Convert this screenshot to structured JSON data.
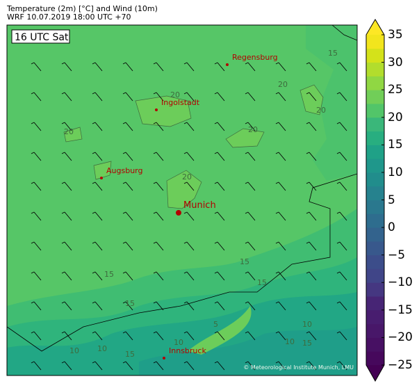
{
  "header": {
    "title": "Temperature (2m) [°C] and Wind (10m)",
    "subtitle": "WRF 10.07.2019 18:00 UTC +70"
  },
  "map": {
    "time_label": "16 UTC Sat",
    "cities": [
      {
        "name": "Regensburg",
        "major": false
      },
      {
        "name": "Ingolstadt",
        "major": false
      },
      {
        "name": "Augsburg",
        "major": false
      },
      {
        "name": "Munich",
        "major": true
      },
      {
        "name": "Innsbruck",
        "major": false
      }
    ],
    "contour_labels": [
      "15",
      "20",
      "20",
      "20",
      "20",
      "20",
      "20",
      "15",
      "15",
      "15",
      "15",
      "10",
      "10",
      "10",
      "15",
      "10",
      "5",
      "15",
      "10"
    ],
    "wind_direction": "northwest",
    "copyright": "© Meteorological Institute Munich, LMU",
    "city_color": "#b30000"
  },
  "colorbar": {
    "colormap": "viridis",
    "min": -25,
    "max": 35,
    "step": 2.5,
    "extend": "both",
    "ticks": [
      "35",
      "30",
      "25",
      "20",
      "15",
      "10",
      "5",
      "0",
      "−5",
      "−10",
      "−15",
      "−20",
      "−25"
    ]
  }
}
